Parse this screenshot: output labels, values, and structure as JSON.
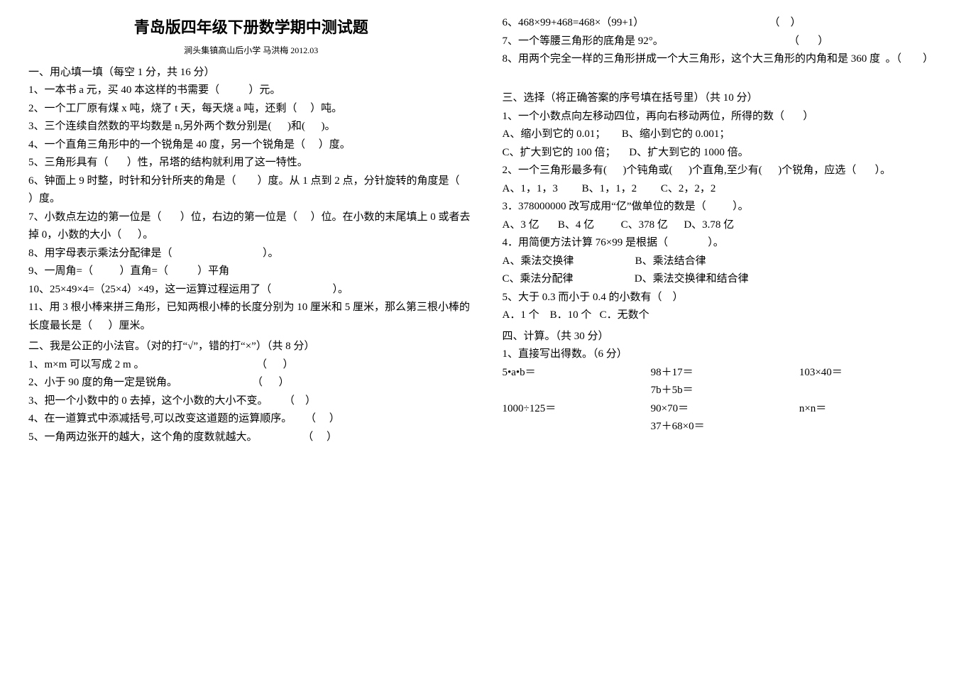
{
  "header": {
    "title": "青岛版四年级下册数学期中测试题",
    "subtitle": "涧头集镇高山后小学  马洪梅   2012.03"
  },
  "left": {
    "sec1_heading": "一、用心填一填（每空 1 分，共 16 分）",
    "q1": "1、一本书 a 元，买 40 本这样的书需要（           ）元。",
    "q2": "2、一个工厂原有煤 x 吨，烧了 t 天，每天烧 a 吨，还剩（     ）吨。",
    "q3": "3、三个连续自然数的平均数是 n,另外两个数分别是(      )和(      )。",
    "q4": "4、一个直角三角形中的一个锐角是 40 度，另一个锐角是（     ）度。",
    "q5": "5、三角形具有（       ）性，吊塔的结构就利用了这一特性。",
    "q6": "6、钟面上 9 时整，时针和分针所夹的角是（        ）度。从 1 点到 2 点，分针旋转的角度是（          ）度。",
    "q7": "7、小数点左边的第一位是（       ）位，右边的第一位是（     ）位。在小数的末尾填上 0 或者去掉 0，小数的大小（      ）。",
    "q8": "8、用字母表示乘法分配律是（                                  ）。",
    "q9": "9、一周角=（          ）直角=（           ）平角",
    "q10": "10、25×49×4=（25×4）×49，这一运算过程运用了（                       ）。",
    "q11": "11、用 3 根小棒来拼三角形，已知两根小棒的长度分别为 10 厘米和 5 厘米，那么第三根小棒的长度最长是（      ）厘米。",
    "sec2_heading": "二、我是公正的小法官。（对的打“√”，错的打“×”）（共 8 分）",
    "j1": "1、m×m 可以写成 2 m 。                                          （      ）",
    "j2": "2、小于 90 度的角一定是锐角。                            （      ）",
    "j3": "3、把一个小数中的 0 去掉，这个小数的大小不变。      （    ）",
    "j4": "4、在一道算式中添减括号,可以改变这道题的运算顺序。     （     ）",
    "j5": "5、一角两边张开的越大，这个角的度数就越大。                 （     ）"
  },
  "right": {
    "j6": "6、468×99+468=468×（99+1）                                               （    ）",
    "j7": "7、一个等腰三角形的底角是 92°。                                               （       ）",
    "j8": "8、用两个完全一样的三角形拼成一个大三角形，这个大三角形的内角和是 360 度  。（        ）",
    "sec3_heading": "三、选择（将正确答案的序号填在括号里）（共 10 分）",
    "c1": "1、一个小数点向左移动四位，再向右移动两位，所得的数（       ）",
    "c1opts": "A、缩小到它的 0.01；      B、缩小到它的 0.001；\nC、扩大到它的 100 倍；     D、扩大到它的 1000 倍。",
    "c2": "2、一个三角形最多有(      )个钝角或(      )个直角,至少有(      )个锐角，应选（       ）。",
    "c2opts": "A、1，1，3         B、1，1，2         C、2，2，2",
    "c3": "3．378000000 改写成用“亿”做单位的数是（          ）。",
    "c3opts": "A、3 亿       B、4 亿          C、378 亿      D、3.78 亿",
    "c4": "4．用简便方法计算 76×99 是根据（               ）。",
    "c4opts": "A、乘法交换律                       B、乘法结合律\nC、乘法分配律                       D、乘法交换律和结合律",
    "c5": "5、大于 0.3 而小于 0.4 的小数有（    ）",
    "c5opts": "A．1 个    B．10 个   C．无数个",
    "sec4_heading": "四、计算。（共 30 分）",
    "calc_heading": "1、直接写出得数。（6 分）",
    "calc": {
      "r1c1": "5•a•b＝",
      "r1c2": "98＋17＝",
      "r1c3": "103×40＝",
      "r2c1": "",
      "r2c2": "7b＋5b＝",
      "r2c3": "",
      "r3c1": "1000÷125＝",
      "r3c2": "90×70＝",
      "r3c3": "n×n＝",
      "r4c1": "",
      "r4c2": "37＋68×0＝",
      "r4c3": ""
    }
  }
}
